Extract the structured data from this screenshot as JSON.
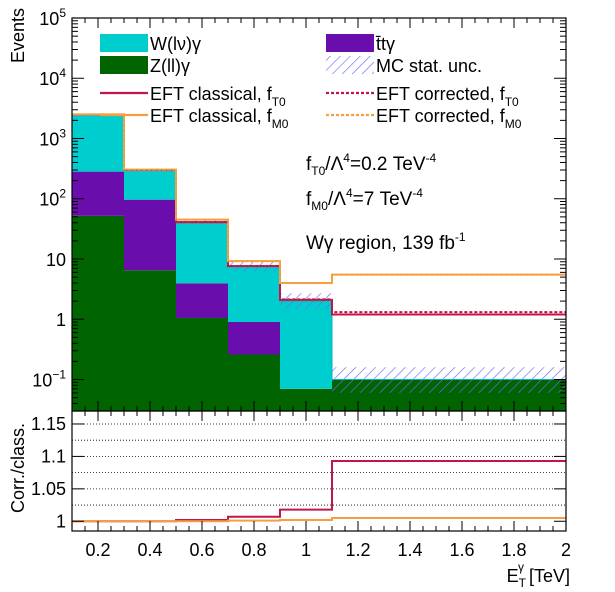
{
  "chart_data": [
    {
      "type": "bar",
      "stacked": true,
      "scale": "log",
      "title": "",
      "xlabel": "",
      "ylabel": "Events",
      "xlim": [
        0.1,
        2.0
      ],
      "ylim": [
        0.03,
        100000
      ],
      "bin_edges": [
        0.1,
        0.3,
        0.5,
        0.7,
        0.9,
        1.1,
        2.0
      ],
      "x_ticks": [
        "0.2",
        "0.4",
        "0.6",
        "0.8",
        "1",
        "1.2",
        "1.4",
        "1.6",
        "1.8",
        "2"
      ],
      "y_ticks": [
        {
          "value": 0.1,
          "base": "10",
          "exp": "−1"
        },
        {
          "value": 1,
          "label": "1"
        },
        {
          "value": 10,
          "label": "10"
        },
        {
          "value": 100,
          "base": "10",
          "exp": "2"
        },
        {
          "value": 1000,
          "base": "10",
          "exp": "3"
        },
        {
          "value": 10000,
          "base": "10",
          "exp": "4"
        },
        {
          "value": 100000,
          "base": "10",
          "exp": "5"
        }
      ],
      "series": [
        {
          "name": "Z(ll)γ",
          "color": "#006400",
          "values": [
            52,
            6.5,
            1.05,
            0.26,
            0.07,
            0.1
          ]
        },
        {
          "name": "t̄tγ",
          "color": "#6a0dad",
          "values": [
            230,
            90,
            2.9,
            0.64,
            0.0,
            0.0
          ]
        },
        {
          "name": "W(lν)γ",
          "color": "#00cdcd",
          "values": [
            2218,
            203.5,
            37.05,
            6.6,
            1.93,
            0.0
          ]
        }
      ],
      "totals": [
        2500,
        300,
        41,
        7.5,
        2.0,
        0.1
      ],
      "mc_stat_unc": {
        "name": "MC stat. unc.",
        "color": "#6b6bff",
        "down": [
          2480,
          290,
          37,
          6.2,
          1.5,
          0.06
        ],
        "up": [
          2540,
          312,
          46,
          9.0,
          2.7,
          0.16
        ]
      },
      "eft_lines": [
        {
          "name": "EFT classical, f_T0",
          "color": "#c0174a",
          "style": "solid",
          "values": [
            2500,
            300,
            41,
            7.6,
            2.1,
            1.2
          ]
        },
        {
          "name": "EFT classical, f_M0",
          "color": "#f5a040",
          "style": "solid",
          "values": [
            2510,
            305,
            45,
            9.2,
            4.0,
            5.5
          ]
        },
        {
          "name": "EFT corrected, f_T0",
          "color": "#c0174a",
          "style": "dashed",
          "values": [
            2500,
            300,
            41,
            7.65,
            2.14,
            1.31
          ]
        },
        {
          "name": "EFT corrected, f_M0",
          "color": "#f5a040",
          "style": "dashed",
          "values": [
            2510,
            305,
            45,
            9.2,
            4.0,
            5.5
          ]
        }
      ],
      "annotations": {
        "line1_base": "f",
        "line1_sub": "T0",
        "line1_mid": "/Λ",
        "line1_sup": "4",
        "line1_rest": "=0.2 TeV",
        "line1_sup2": "-4",
        "line2_base": "f",
        "line2_sub": "M0",
        "line2_mid": "/Λ",
        "line2_sup": "4",
        "line2_rest": "=7 TeV",
        "line2_sup2": "-4",
        "line3": "Wγ region, 139 fb",
        "line3_sup": "-1"
      },
      "legend": [
        {
          "label": "W(lν)γ",
          "kind": "fill",
          "color": "#00cdcd"
        },
        {
          "label": "t̄tγ",
          "kind": "fill",
          "color": "#6a0dad"
        },
        {
          "label": "Z(ll)γ",
          "kind": "fill",
          "color": "#006400"
        },
        {
          "label": "MC stat. unc.",
          "kind": "hatch",
          "color": "#6b6bff"
        },
        {
          "label": "EFT classical, f",
          "sub": "T0",
          "kind": "line",
          "color": "#c0174a"
        },
        {
          "label": "EFT corrected, f",
          "sub": "T0",
          "kind": "dashed",
          "color": "#c0174a"
        },
        {
          "label": "EFT classical, f",
          "sub": "M0",
          "kind": "line",
          "color": "#f5a040"
        },
        {
          "label": "EFT corrected, f",
          "sub": "M0",
          "kind": "dashed",
          "color": "#f5a040"
        }
      ]
    },
    {
      "type": "line",
      "title": "",
      "xlabel": "E",
      "xlabel_sub": "T",
      "xlabel_sup": "γ",
      "xlabel_unit": " [TeV]",
      "ylabel": "Corr./class.",
      "xlim": [
        0.1,
        2.0
      ],
      "ylim": [
        0.985,
        1.17
      ],
      "y_ticks": [
        "1",
        "1.05",
        "1.1",
        "1.15"
      ],
      "y_tick_values": [
        1.0,
        1.05,
        1.1,
        1.15
      ],
      "grid_y": [
        1.025,
        1.05,
        1.075,
        1.1,
        1.125,
        1.15
      ],
      "series": [
        {
          "name": "f_T0 ratio",
          "color": "#c0174a",
          "values": [
            1.0,
            1.0,
            1.002,
            1.007,
            1.018,
            1.093
          ]
        },
        {
          "name": "f_M0 ratio",
          "color": "#f5a040",
          "values": [
            1.0,
            1.0,
            1.0,
            1.001,
            1.002,
            1.005
          ]
        }
      ]
    }
  ]
}
